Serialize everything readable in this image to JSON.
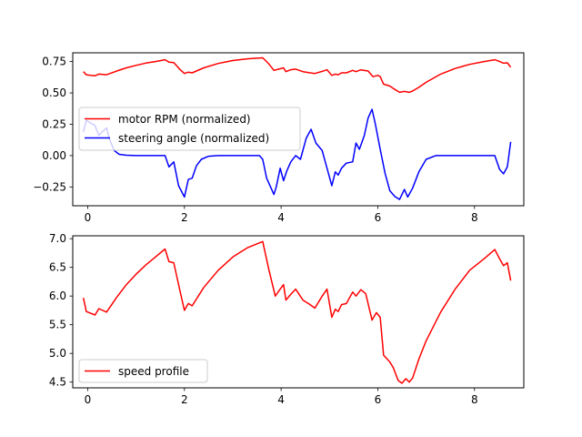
{
  "chart_data": [
    {
      "type": "line",
      "xlim": [
        -0.31,
        9.02
      ],
      "ylim": [
        -0.4,
        0.82
      ],
      "xticks": [
        0,
        2,
        4,
        6,
        8
      ],
      "xtick_labels": [
        "0",
        "2",
        "4",
        "6",
        "8"
      ],
      "yticks": [
        0.75,
        0.5,
        0.25,
        0.0,
        -0.25
      ],
      "ytick_labels": [
        "0.75",
        "0.50",
        "0.25",
        "0.00",
        "−0.25"
      ],
      "grid": false,
      "legend_position": "center-left",
      "series": [
        {
          "name": "motor RPM (normalized)",
          "color": "#ff0000",
          "points": [
            [
              -0.09,
              0.67
            ],
            [
              -0.03,
              0.645
            ],
            [
              0.06,
              0.64
            ],
            [
              0.15,
              0.637
            ],
            [
              0.23,
              0.65
            ],
            [
              0.39,
              0.645
            ],
            [
              0.6,
              0.675
            ],
            [
              0.8,
              0.7
            ],
            [
              1.0,
              0.72
            ],
            [
              1.2,
              0.738
            ],
            [
              1.4,
              0.75
            ],
            [
              1.6,
              0.765
            ],
            [
              1.68,
              0.745
            ],
            [
              1.78,
              0.742
            ],
            [
              1.9,
              0.69
            ],
            [
              2.0,
              0.655
            ],
            [
              2.08,
              0.665
            ],
            [
              2.16,
              0.66
            ],
            [
              2.4,
              0.7
            ],
            [
              2.7,
              0.735
            ],
            [
              3.0,
              0.758
            ],
            [
              3.3,
              0.772
            ],
            [
              3.62,
              0.78
            ],
            [
              3.75,
              0.73
            ],
            [
              3.85,
              0.68
            ],
            [
              3.98,
              0.693
            ],
            [
              4.05,
              0.7
            ],
            [
              4.1,
              0.67
            ],
            [
              4.2,
              0.685
            ],
            [
              4.3,
              0.69
            ],
            [
              4.45,
              0.67
            ],
            [
              4.6,
              0.66
            ],
            [
              4.7,
              0.655
            ],
            [
              4.85,
              0.672
            ],
            [
              4.95,
              0.685
            ],
            [
              5.05,
              0.64
            ],
            [
              5.12,
              0.65
            ],
            [
              5.18,
              0.645
            ],
            [
              5.25,
              0.66
            ],
            [
              5.35,
              0.66
            ],
            [
              5.48,
              0.68
            ],
            [
              5.55,
              0.67
            ],
            [
              5.65,
              0.684
            ],
            [
              5.8,
              0.675
            ],
            [
              5.9,
              0.63
            ],
            [
              6.0,
              0.64
            ],
            [
              6.05,
              0.63
            ],
            [
              6.12,
              0.57
            ],
            [
              6.25,
              0.555
            ],
            [
              6.35,
              0.528
            ],
            [
              6.45,
              0.505
            ],
            [
              6.55,
              0.512
            ],
            [
              6.65,
              0.505
            ],
            [
              6.72,
              0.515
            ],
            [
              6.85,
              0.545
            ],
            [
              7.0,
              0.585
            ],
            [
              7.3,
              0.65
            ],
            [
              7.6,
              0.695
            ],
            [
              7.9,
              0.728
            ],
            [
              8.2,
              0.75
            ],
            [
              8.42,
              0.765
            ],
            [
              8.52,
              0.75
            ],
            [
              8.6,
              0.737
            ],
            [
              8.68,
              0.74
            ],
            [
              8.75,
              0.705
            ]
          ]
        },
        {
          "name": "steering angle (normalized)",
          "color": "#0000ff",
          "points": [
            [
              -0.09,
              0.19
            ],
            [
              -0.03,
              0.28
            ],
            [
              0.06,
              0.26
            ],
            [
              0.15,
              0.24
            ],
            [
              0.23,
              0.16
            ],
            [
              0.3,
              0.19
            ],
            [
              0.39,
              0.22
            ],
            [
              0.45,
              0.13
            ],
            [
              0.55,
              0.04
            ],
            [
              0.65,
              0.01
            ],
            [
              0.8,
              0.003
            ],
            [
              1.0,
              0.0
            ],
            [
              1.3,
              0.0
            ],
            [
              1.6,
              0.0
            ],
            [
              1.68,
              -0.09
            ],
            [
              1.78,
              -0.05
            ],
            [
              1.88,
              -0.24
            ],
            [
              2.0,
              -0.33
            ],
            [
              2.08,
              -0.19
            ],
            [
              2.16,
              -0.18
            ],
            [
              2.25,
              -0.08
            ],
            [
              2.35,
              -0.03
            ],
            [
              2.5,
              -0.005
            ],
            [
              2.7,
              0.0
            ],
            [
              3.0,
              0.0
            ],
            [
              3.3,
              0.0
            ],
            [
              3.55,
              0.0
            ],
            [
              3.62,
              -0.03
            ],
            [
              3.7,
              -0.18
            ],
            [
              3.85,
              -0.31
            ],
            [
              3.9,
              -0.25
            ],
            [
              3.98,
              -0.1
            ],
            [
              4.05,
              -0.2
            ],
            [
              4.12,
              -0.12
            ],
            [
              4.2,
              -0.05
            ],
            [
              4.3,
              0.0
            ],
            [
              4.4,
              -0.03
            ],
            [
              4.52,
              0.14
            ],
            [
              4.62,
              0.21
            ],
            [
              4.72,
              0.1
            ],
            [
              4.85,
              0.04
            ],
            [
              4.95,
              -0.1
            ],
            [
              5.05,
              -0.24
            ],
            [
              5.12,
              -0.13
            ],
            [
              5.18,
              -0.155
            ],
            [
              5.25,
              -0.1
            ],
            [
              5.35,
              -0.06
            ],
            [
              5.48,
              -0.05
            ],
            [
              5.55,
              0.1
            ],
            [
              5.62,
              0.05
            ],
            [
              5.72,
              0.16
            ],
            [
              5.8,
              0.3
            ],
            [
              5.88,
              0.37
            ],
            [
              5.95,
              0.25
            ],
            [
              6.05,
              0.05
            ],
            [
              6.15,
              -0.14
            ],
            [
              6.25,
              -0.28
            ],
            [
              6.35,
              -0.325
            ],
            [
              6.45,
              -0.35
            ],
            [
              6.55,
              -0.27
            ],
            [
              6.62,
              -0.33
            ],
            [
              6.72,
              -0.26
            ],
            [
              6.85,
              -0.13
            ],
            [
              7.0,
              -0.03
            ],
            [
              7.2,
              0.0
            ],
            [
              7.5,
              0.0
            ],
            [
              7.8,
              0.0
            ],
            [
              8.1,
              0.0
            ],
            [
              8.42,
              0.0
            ],
            [
              8.52,
              -0.11
            ],
            [
              8.6,
              -0.145
            ],
            [
              8.68,
              -0.09
            ],
            [
              8.75,
              0.11
            ]
          ]
        }
      ]
    },
    {
      "type": "line",
      "xlim": [
        -0.31,
        9.02
      ],
      "ylim": [
        4.4,
        7.05
      ],
      "xticks": [
        0,
        2,
        4,
        6,
        8
      ],
      "xtick_labels": [
        "0",
        "2",
        "4",
        "6",
        "8"
      ],
      "yticks": [
        7.0,
        6.5,
        6.0,
        5.5,
        5.0,
        4.5
      ],
      "ytick_labels": [
        "7.0",
        "6.5",
        "6.0",
        "5.5",
        "5.0",
        "4.5"
      ],
      "grid": false,
      "legend_position": "lower-left",
      "series": [
        {
          "name": "speed profile",
          "color": "#ff0000",
          "points": [
            [
              -0.09,
              5.97
            ],
            [
              -0.03,
              5.73
            ],
            [
              0.06,
              5.7
            ],
            [
              0.15,
              5.67
            ],
            [
              0.23,
              5.78
            ],
            [
              0.39,
              5.72
            ],
            [
              0.6,
              5.98
            ],
            [
              0.8,
              6.2
            ],
            [
              1.0,
              6.38
            ],
            [
              1.2,
              6.54
            ],
            [
              1.4,
              6.68
            ],
            [
              1.6,
              6.82
            ],
            [
              1.68,
              6.6
            ],
            [
              1.78,
              6.58
            ],
            [
              1.9,
              6.12
            ],
            [
              2.0,
              5.75
            ],
            [
              2.08,
              5.87
            ],
            [
              2.16,
              5.83
            ],
            [
              2.4,
              6.15
            ],
            [
              2.7,
              6.45
            ],
            [
              3.0,
              6.68
            ],
            [
              3.3,
              6.84
            ],
            [
              3.62,
              6.95
            ],
            [
              3.75,
              6.45
            ],
            [
              3.88,
              6.0
            ],
            [
              3.98,
              6.12
            ],
            [
              4.05,
              6.2
            ],
            [
              4.1,
              5.93
            ],
            [
              4.2,
              6.03
            ],
            [
              4.3,
              6.12
            ],
            [
              4.45,
              5.93
            ],
            [
              4.6,
              5.85
            ],
            [
              4.7,
              5.79
            ],
            [
              4.85,
              6.0
            ],
            [
              4.95,
              6.12
            ],
            [
              5.05,
              5.63
            ],
            [
              5.12,
              5.77
            ],
            [
              5.18,
              5.73
            ],
            [
              5.25,
              5.85
            ],
            [
              5.35,
              5.87
            ],
            [
              5.48,
              6.07
            ],
            [
              5.55,
              6.0
            ],
            [
              5.65,
              6.11
            ],
            [
              5.75,
              6.04
            ],
            [
              5.88,
              5.58
            ],
            [
              5.97,
              5.71
            ],
            [
              6.05,
              5.63
            ],
            [
              6.12,
              4.97
            ],
            [
              6.25,
              4.85
            ],
            [
              6.32,
              4.75
            ],
            [
              6.42,
              4.53
            ],
            [
              6.5,
              4.48
            ],
            [
              6.58,
              4.56
            ],
            [
              6.65,
              4.5
            ],
            [
              6.72,
              4.57
            ],
            [
              6.85,
              4.9
            ],
            [
              7.0,
              5.22
            ],
            [
              7.3,
              5.72
            ],
            [
              7.6,
              6.12
            ],
            [
              7.9,
              6.45
            ],
            [
              8.2,
              6.65
            ],
            [
              8.42,
              6.81
            ],
            [
              8.52,
              6.65
            ],
            [
              8.6,
              6.53
            ],
            [
              8.68,
              6.58
            ],
            [
              8.75,
              6.27
            ]
          ]
        }
      ]
    }
  ]
}
